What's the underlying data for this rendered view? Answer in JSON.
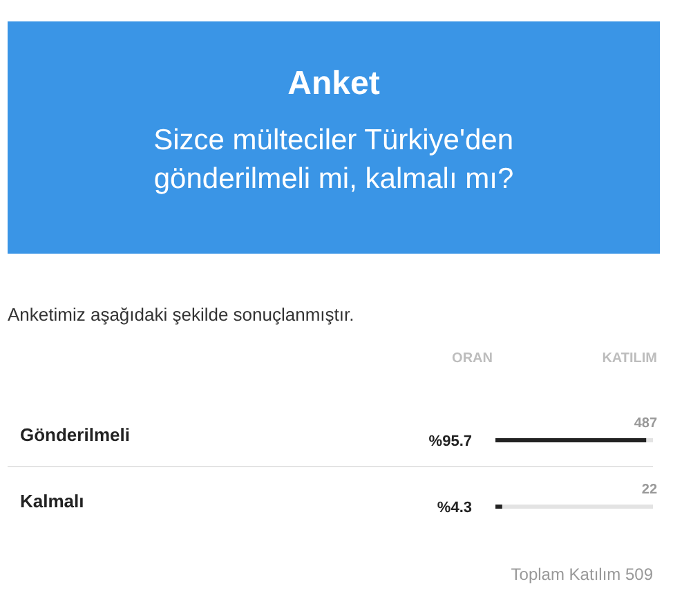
{
  "chart_data": {
    "type": "bar",
    "orientation": "horizontal",
    "title": "Anket",
    "subtitle": "Sizce mülteciler Türkiye'den gönderilmeli mi, kalmalı mı?",
    "categories": [
      "Gönderilmeli",
      "Kalmalı"
    ],
    "values": [
      95.7,
      4.3
    ],
    "color": "#222222",
    "value_labels": [
      "%95.7",
      "%4.3"
    ],
    "xlim": [
      0,
      100
    ],
    "tick_labels": false,
    "annotations": [
      "Anketimiz aşağıdaki şekilde sonuçlanmıştır.",
      "ORAN",
      "KATILIM",
      "487",
      "22",
      "Toplam Katılım 509"
    ]
  }
}
